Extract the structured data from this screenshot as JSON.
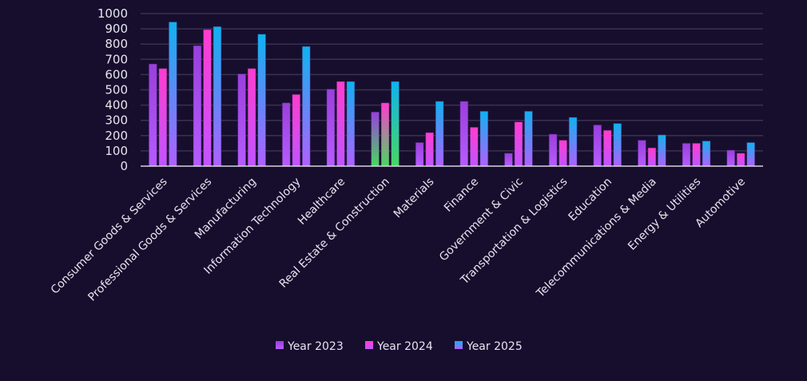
{
  "chart_data": {
    "type": "bar",
    "title": "",
    "xlabel": "",
    "ylabel": "",
    "ylim": [
      0,
      1000
    ],
    "yticks": [
      0,
      100,
      200,
      300,
      400,
      500,
      600,
      700,
      800,
      900,
      1000
    ],
    "grid": true,
    "legend_position": "bottom",
    "categories": [
      "Consumer Goods & Services",
      "Professional Goods & Services",
      "Manufacturing",
      "Information Technology",
      "Healthcare",
      "Real Estate & Construction",
      "Materials",
      "Finance",
      "Government & Civic",
      "Transportation & Logistics",
      "Education",
      "Telecommunications & Media",
      "Energy & Utilities",
      "Automotive"
    ],
    "highlighted_category": "Real Estate & Construction",
    "series": [
      {
        "name": "Year 2023",
        "color_top": "#9a3fdc",
        "color_bottom": "#b65cff",
        "values": [
          670,
          790,
          605,
          415,
          505,
          355,
          155,
          425,
          85,
          210,
          270,
          170,
          150,
          105
        ]
      },
      {
        "name": "Year 2024",
        "color_top": "#ff3ccf",
        "color_bottom": "#c055ff",
        "values": [
          640,
          895,
          640,
          470,
          555,
          415,
          220,
          255,
          290,
          170,
          235,
          120,
          150,
          85
        ]
      },
      {
        "name": "Year 2025",
        "color_top": "#0fb2f0",
        "color_bottom": "#b060ff",
        "values": [
          945,
          915,
          865,
          785,
          555,
          555,
          425,
          360,
          360,
          320,
          280,
          205,
          165,
          155
        ]
      }
    ],
    "highlight_color_bottom": "#48d860"
  }
}
